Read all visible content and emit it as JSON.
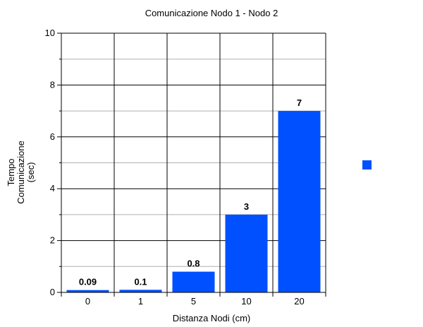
{
  "chart_data": {
    "type": "bar",
    "title": "Comunicazione Nodo 1 - Nodo 2",
    "xlabel": "Distanza Nodi (cm)",
    "ylabel_lines": [
      "Tempo",
      "Comunicazione",
      "(sec)"
    ],
    "categories": [
      "0",
      "1",
      "5",
      "10",
      "20"
    ],
    "series": [
      {
        "values": [
          0.09,
          0.1,
          0.8,
          3,
          7
        ],
        "color": "#0050ff"
      }
    ],
    "data_labels": [
      "0.09",
      "0.1",
      "0.8",
      "3",
      "7"
    ],
    "ylim": [
      0,
      10
    ],
    "y_major_ticks": [
      0,
      2,
      4,
      6,
      8,
      10
    ],
    "y_minor_step": 1,
    "grid": true,
    "legend": {
      "placement": "right",
      "entries": [
        {
          "label": "",
          "color": "#0050ff"
        }
      ]
    }
  }
}
